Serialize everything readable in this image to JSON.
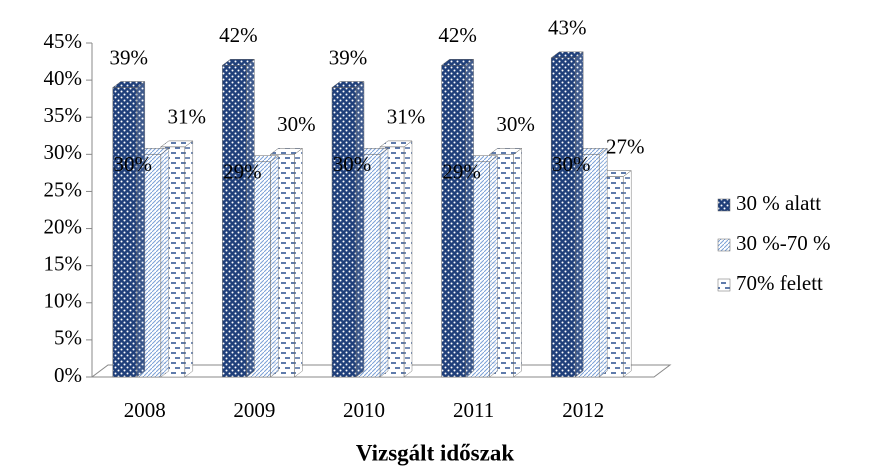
{
  "chart_data": {
    "type": "bar3d",
    "x_label": "Vizsgált időszak",
    "categories": [
      "2008",
      "2009",
      "2010",
      "2011",
      "2012"
    ],
    "series": [
      {
        "name": "30 % alatt",
        "color": "#1f3f7a",
        "values": [
          39,
          42,
          39,
          42,
          43
        ],
        "value_labels": [
          "39%",
          "42%",
          "39%",
          "42%",
          "43%"
        ]
      },
      {
        "name": "30 %-70 %",
        "color": "#7a9fd6",
        "values": [
          30,
          29,
          30,
          29,
          30
        ],
        "value_labels": [
          "30%",
          "29%",
          "30%",
          "29%",
          "30%"
        ]
      },
      {
        "name": "70% felett",
        "color": "#2a4f8f",
        "values": [
          31,
          30,
          31,
          30,
          27
        ],
        "value_labels": [
          "31%",
          "30%",
          "31%",
          "30%",
          "27%"
        ]
      }
    ],
    "ylim": [
      0,
      45
    ],
    "yticks": [
      {
        "value": 0,
        "label": "0%"
      },
      {
        "value": 5,
        "label": "5%"
      },
      {
        "value": 10,
        "label": "10%"
      },
      {
        "value": 15,
        "label": "15%"
      },
      {
        "value": 20,
        "label": "20%"
      },
      {
        "value": 25,
        "label": "25%"
      },
      {
        "value": 30,
        "label": "30%"
      },
      {
        "value": 35,
        "label": "35%"
      },
      {
        "value": 40,
        "label": "40%"
      },
      {
        "value": 45,
        "label": "45%"
      }
    ],
    "legend": "right"
  }
}
